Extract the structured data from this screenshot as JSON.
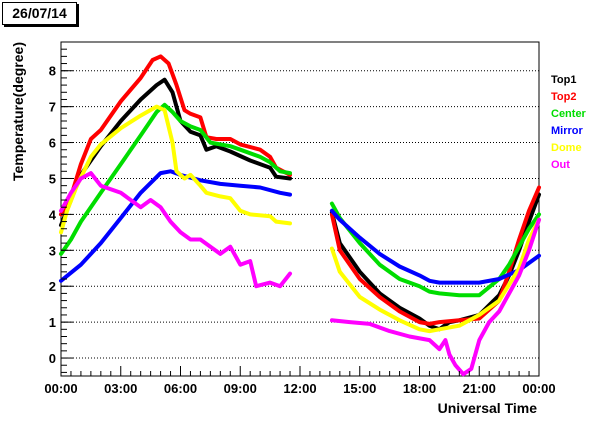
{
  "date_label": "26/07/14",
  "chart_data": {
    "type": "line",
    "title": "",
    "xlabel": "Universal Time",
    "ylabel": "Temperature(degree)",
    "xlim": [
      0,
      24
    ],
    "ylim": [
      -0.5,
      8.8
    ],
    "grid": "horizontal dotted",
    "legend_position": "right",
    "x_ticks": [
      {
        "value": 0,
        "label": "00:00"
      },
      {
        "value": 3,
        "label": "03:00"
      },
      {
        "value": 6,
        "label": "06:00"
      },
      {
        "value": 9,
        "label": "09:00"
      },
      {
        "value": 12,
        "label": "12:00"
      },
      {
        "value": 15,
        "label": "15:00"
      },
      {
        "value": 18,
        "label": "18:00"
      },
      {
        "value": 21,
        "label": "21:00"
      },
      {
        "value": 24,
        "label": "00:00"
      }
    ],
    "y_ticks": [
      0,
      1,
      2,
      3,
      4,
      5,
      6,
      7,
      8
    ],
    "series": [
      {
        "name": "Top1",
        "color": "#000000",
        "segments": [
          [
            [
              0,
              3.7
            ],
            [
              0.5,
              4.4
            ],
            [
              1,
              5.1
            ],
            [
              2,
              5.9
            ],
            [
              3,
              6.6
            ],
            [
              4,
              7.2
            ],
            [
              4.8,
              7.6
            ],
            [
              5.2,
              7.75
            ],
            [
              5.6,
              7.4
            ],
            [
              6,
              6.6
            ],
            [
              6.5,
              6.3
            ],
            [
              7,
              6.2
            ],
            [
              7.3,
              5.8
            ],
            [
              7.8,
              5.9
            ],
            [
              8.5,
              5.75
            ],
            [
              9.5,
              5.5
            ],
            [
              10.5,
              5.3
            ],
            [
              10.8,
              5.05
            ],
            [
              11.5,
              5.0
            ]
          ],
          [
            [
              13.6,
              4.05
            ],
            [
              14,
              3.2
            ],
            [
              15,
              2.4
            ],
            [
              16,
              1.8
            ],
            [
              17,
              1.4
            ],
            [
              18,
              1.1
            ],
            [
              18.5,
              0.9
            ],
            [
              19,
              0.8
            ],
            [
              19.5,
              1.0
            ],
            [
              20,
              1.05
            ],
            [
              21,
              1.2
            ],
            [
              22,
              1.75
            ],
            [
              22.5,
              2.3
            ],
            [
              23,
              3.0
            ],
            [
              23.5,
              3.8
            ],
            [
              24,
              4.55
            ]
          ]
        ]
      },
      {
        "name": "Top2",
        "color": "#ff0000",
        "segments": [
          [
            [
              0,
              4.0
            ],
            [
              0.5,
              4.5
            ],
            [
              1,
              5.4
            ],
            [
              1.5,
              6.1
            ],
            [
              2,
              6.35
            ],
            [
              3,
              7.15
            ],
            [
              4,
              7.8
            ],
            [
              4.6,
              8.3
            ],
            [
              5,
              8.4
            ],
            [
              5.4,
              8.2
            ],
            [
              5.8,
              7.6
            ],
            [
              6.2,
              6.9
            ],
            [
              6.5,
              6.8
            ],
            [
              7,
              6.7
            ],
            [
              7.3,
              6.15
            ],
            [
              7.8,
              6.1
            ],
            [
              8.5,
              6.1
            ],
            [
              9,
              5.95
            ],
            [
              10,
              5.8
            ],
            [
              10.5,
              5.6
            ],
            [
              10.8,
              5.3
            ],
            [
              11.5,
              5.1
            ]
          ],
          [
            [
              13.6,
              4.0
            ],
            [
              14,
              3.0
            ],
            [
              15,
              2.2
            ],
            [
              16,
              1.7
            ],
            [
              17,
              1.3
            ],
            [
              18,
              1.0
            ],
            [
              18.5,
              0.95
            ],
            [
              19,
              1.0
            ],
            [
              20,
              1.05
            ],
            [
              21,
              1.1
            ],
            [
              22,
              1.6
            ],
            [
              22.5,
              2.4
            ],
            [
              23,
              3.3
            ],
            [
              23.5,
              4.1
            ],
            [
              24,
              4.75
            ]
          ]
        ]
      },
      {
        "name": "Center",
        "color": "#00dd00",
        "segments": [
          [
            [
              0,
              2.9
            ],
            [
              0.5,
              3.3
            ],
            [
              1,
              3.8
            ],
            [
              2,
              4.6
            ],
            [
              3,
              5.4
            ],
            [
              4,
              6.2
            ],
            [
              4.8,
              6.85
            ],
            [
              5.2,
              7.05
            ],
            [
              5.6,
              6.85
            ],
            [
              6,
              6.6
            ],
            [
              6.5,
              6.45
            ],
            [
              7,
              6.35
            ],
            [
              7.5,
              6.0
            ],
            [
              8,
              5.95
            ],
            [
              8.5,
              5.9
            ],
            [
              9,
              5.8
            ],
            [
              10,
              5.6
            ],
            [
              10.5,
              5.45
            ],
            [
              11,
              5.2
            ],
            [
              11.5,
              5.15
            ]
          ],
          [
            [
              13.6,
              4.3
            ],
            [
              14,
              3.9
            ],
            [
              15,
              3.2
            ],
            [
              16,
              2.6
            ],
            [
              17,
              2.2
            ],
            [
              18,
              2.0
            ],
            [
              18.5,
              1.85
            ],
            [
              19,
              1.8
            ],
            [
              20,
              1.75
            ],
            [
              21,
              1.75
            ],
            [
              22,
              2.2
            ],
            [
              22.5,
              2.6
            ],
            [
              23,
              3.1
            ],
            [
              23.5,
              3.6
            ],
            [
              24,
              4.0
            ]
          ]
        ]
      },
      {
        "name": "Mirror",
        "color": "#0000ff",
        "segments": [
          [
            [
              0,
              2.15
            ],
            [
              1,
              2.6
            ],
            [
              2,
              3.2
            ],
            [
              3,
              3.9
            ],
            [
              4,
              4.6
            ],
            [
              5,
              5.15
            ],
            [
              5.5,
              5.2
            ],
            [
              6,
              5.1
            ],
            [
              7,
              4.95
            ],
            [
              8,
              4.85
            ],
            [
              9,
              4.8
            ],
            [
              10,
              4.75
            ],
            [
              11,
              4.6
            ],
            [
              11.5,
              4.55
            ]
          ],
          [
            [
              13.6,
              4.1
            ],
            [
              14,
              3.85
            ],
            [
              15,
              3.35
            ],
            [
              16,
              2.9
            ],
            [
              17,
              2.55
            ],
            [
              18,
              2.3
            ],
            [
              18.5,
              2.15
            ],
            [
              19,
              2.1
            ],
            [
              20,
              2.1
            ],
            [
              21,
              2.1
            ],
            [
              22,
              2.2
            ],
            [
              23,
              2.45
            ],
            [
              24,
              2.85
            ]
          ]
        ]
      },
      {
        "name": "Dome",
        "color": "#ffff00",
        "segments": [
          [
            [
              0,
              3.5
            ],
            [
              0.3,
              4.1
            ],
            [
              0.8,
              4.8
            ],
            [
              1.5,
              5.6
            ],
            [
              2,
              5.95
            ],
            [
              3,
              6.4
            ],
            [
              4,
              6.75
            ],
            [
              4.8,
              7.0
            ],
            [
              5.2,
              6.9
            ],
            [
              5.6,
              6.0
            ],
            [
              5.8,
              5.2
            ],
            [
              6.2,
              5.0
            ],
            [
              6.5,
              5.1
            ],
            [
              7,
              4.8
            ],
            [
              7.3,
              4.6
            ],
            [
              8,
              4.5
            ],
            [
              8.5,
              4.45
            ],
            [
              9,
              4.1
            ],
            [
              9.5,
              4.0
            ],
            [
              10.5,
              3.95
            ],
            [
              10.8,
              3.8
            ],
            [
              11.5,
              3.75
            ]
          ],
          [
            [
              13.6,
              3.05
            ],
            [
              14,
              2.4
            ],
            [
              15,
              1.7
            ],
            [
              16,
              1.35
            ],
            [
              17,
              1.05
            ],
            [
              18,
              0.8
            ],
            [
              18.5,
              0.75
            ],
            [
              19,
              0.8
            ],
            [
              20,
              0.9
            ],
            [
              21,
              1.2
            ],
            [
              22,
              1.6
            ],
            [
              23,
              2.5
            ],
            [
              23.5,
              3.3
            ],
            [
              24,
              3.85
            ]
          ]
        ]
      },
      {
        "name": "Out",
        "color": "#ff00ff",
        "segments": [
          [
            [
              0,
              4.1
            ],
            [
              0.5,
              4.6
            ],
            [
              1,
              5.0
            ],
            [
              1.5,
              5.15
            ],
            [
              2,
              4.8
            ],
            [
              3,
              4.6
            ],
            [
              4,
              4.2
            ],
            [
              4.5,
              4.4
            ],
            [
              5,
              4.2
            ],
            [
              5.5,
              3.8
            ],
            [
              6,
              3.5
            ],
            [
              6.5,
              3.3
            ],
            [
              7,
              3.3
            ],
            [
              7.5,
              3.1
            ],
            [
              8,
              2.9
            ],
            [
              8.5,
              3.1
            ],
            [
              9,
              2.6
            ],
            [
              9.5,
              2.7
            ],
            [
              9.8,
              2.0
            ],
            [
              10.5,
              2.1
            ],
            [
              11,
              2.0
            ],
            [
              11.5,
              2.35
            ]
          ],
          [
            [
              13.6,
              1.05
            ],
            [
              14.5,
              1.0
            ],
            [
              15.5,
              0.95
            ],
            [
              16.5,
              0.75
            ],
            [
              17.5,
              0.6
            ],
            [
              18.5,
              0.5
            ],
            [
              19,
              0.25
            ],
            [
              19.3,
              0.5
            ],
            [
              19.5,
              0.1
            ],
            [
              19.8,
              -0.2
            ],
            [
              20.2,
              -0.45
            ],
            [
              20.6,
              -0.3
            ],
            [
              21,
              0.5
            ],
            [
              21.5,
              1.0
            ],
            [
              22,
              1.3
            ],
            [
              23,
              2.3
            ],
            [
              23.5,
              3.0
            ],
            [
              24,
              3.85
            ]
          ]
        ]
      }
    ]
  }
}
